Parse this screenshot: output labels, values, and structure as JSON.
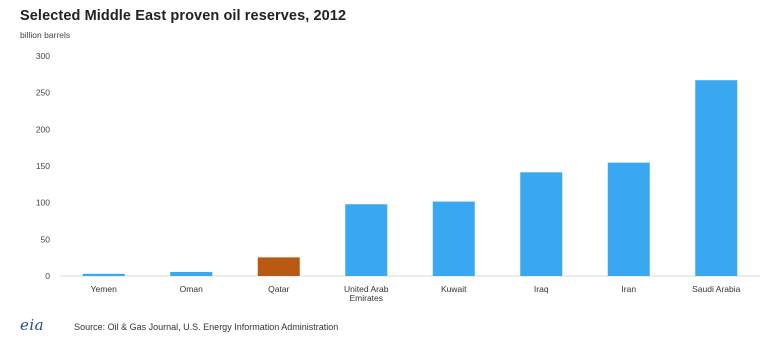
{
  "title": "Selected Middle East proven oil reserves, 2012",
  "unit_label": "billion barrels",
  "source": "Source: Oil & Gas Journal, U.S. Energy Information Administration",
  "logo_text": "eia",
  "colors": {
    "bar": "#3aa8f0",
    "highlight": "#b85a14",
    "axis": "#d8d8d8"
  },
  "chart_data": {
    "type": "bar",
    "categories": [
      "Yemen",
      "Oman",
      "Qatar",
      "United Arab Emirates",
      "Kuwait",
      "Iraq",
      "Iran",
      "Saudi Arabia"
    ],
    "category_lines": [
      [
        "Yemen"
      ],
      [
        "Oman"
      ],
      [
        "Qatar"
      ],
      [
        "United Arab",
        "Emirates"
      ],
      [
        "Kuwait"
      ],
      [
        "Iraq"
      ],
      [
        "Iran"
      ],
      [
        "Saudi Arabia"
      ]
    ],
    "values": [
      3,
      5.5,
      25.4,
      97.8,
      101.5,
      141.4,
      154.6,
      267
    ],
    "highlight_category": "Qatar",
    "ylim": [
      0,
      300
    ],
    "yticks": [
      0,
      50,
      100,
      150,
      200,
      250,
      300
    ],
    "grid": false,
    "title": "Selected Middle East proven oil reserves, 2012",
    "xlabel": "",
    "ylabel": "billion barrels"
  }
}
